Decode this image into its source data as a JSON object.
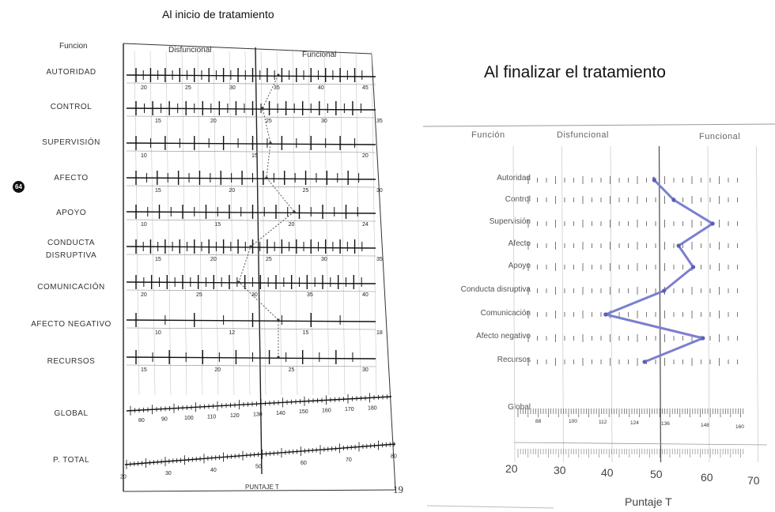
{
  "page_number": "64",
  "left_form": {
    "title": "Al inicio de tratamiento",
    "col_funcion": "Funcion",
    "col_disfuncional": "Disfuncional",
    "col_funcional": "Funcional",
    "rows": [
      {
        "label": "AUTORIDAD",
        "ticks": [
          "20",
          "25",
          "30",
          "35",
          "40",
          "45"
        ]
      },
      {
        "label": "CONTROL",
        "ticks": [
          "15",
          "20",
          "25",
          "30",
          "35"
        ]
      },
      {
        "label": "SUPERVISIÓN",
        "ticks": [
          "10",
          "15",
          "20"
        ]
      },
      {
        "label": "AFECTO",
        "ticks": [
          "15",
          "20",
          "25",
          "30"
        ]
      },
      {
        "label": "APOYO",
        "ticks": [
          "10",
          "15",
          "20",
          "24"
        ]
      },
      {
        "label_line1": "CONDUCTA",
        "label_line2": "DISRUPTIVA",
        "ticks": [
          "15",
          "20",
          "25",
          "30",
          "35"
        ]
      },
      {
        "label": "COMUNICACIÓN",
        "ticks": [
          "20",
          "25",
          "30",
          "35",
          "40"
        ]
      },
      {
        "label": "AFECTO NEGATIVO",
        "ticks": [
          "10",
          "12",
          "15",
          "18"
        ]
      },
      {
        "label": "RECURSOS",
        "ticks": [
          "15",
          "20",
          "25",
          "30"
        ]
      }
    ],
    "global_label": "GLOBAL",
    "global_ticks": [
      "80",
      "90",
      "100",
      "110",
      "120",
      "130",
      "140",
      "150",
      "160",
      "170",
      "180"
    ],
    "total_label": "P. TOTAL",
    "total_ticks": [
      "20",
      "30",
      "40",
      "50",
      "60",
      "70",
      "80"
    ],
    "axis_label": "PUNTAJE T",
    "sheet_number": "19"
  },
  "right_form": {
    "title": "Al finalizar el tratamiento",
    "col_funcion": "Función",
    "col_disfuncional": "Disfuncional",
    "col_funcional": "Funcional",
    "rows": [
      {
        "label": "Autoridad"
      },
      {
        "label": "Control"
      },
      {
        "label": "Supervisión"
      },
      {
        "label": "Afecto"
      },
      {
        "label": "Apoyo"
      },
      {
        "label": "Conducta disruptiva"
      },
      {
        "label": "Comunicación"
      },
      {
        "label": "Afecto negativo"
      },
      {
        "label": "Recursos"
      }
    ],
    "global_label": "Global",
    "global_ticks": [
      "88",
      "100",
      "112",
      "124",
      "136",
      "148",
      "160"
    ],
    "x_ticks": [
      "20",
      "30",
      "40",
      "50",
      "60",
      "70"
    ],
    "axis_label": "Puntaje T",
    "profile_t_scores": [
      49,
      53,
      61,
      54,
      57,
      51,
      39,
      59,
      47
    ],
    "line_color": "#7a7fcf"
  },
  "left_profile_t_scores": [
    50,
    46,
    48,
    47,
    54,
    43,
    40,
    50,
    50
  ]
}
